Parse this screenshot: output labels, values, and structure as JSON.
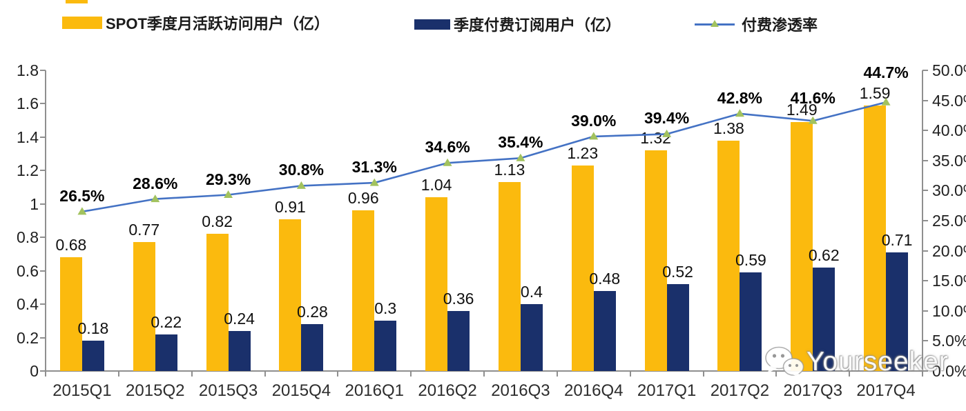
{
  "colors": {
    "mau_bar": "#FBBA0E",
    "sub_bar": "#1A306B",
    "penetration_line": "#4472C4",
    "penetration_marker": "#A2C25E",
    "axis": "#8f8f8f"
  },
  "legend": {
    "items": [
      {
        "label": "SPOT季度月活跃访问用户（亿）",
        "type": "bar",
        "color": "#FBBA0E"
      },
      {
        "label": "季度付费订阅用户（亿）",
        "type": "bar",
        "color": "#1A306B"
      },
      {
        "label": "付费渗透率",
        "type": "line",
        "color": "#4472C4",
        "marker_color": "#A2C25E"
      }
    ]
  },
  "chart_data": {
    "type": "bar",
    "subtype": "grouped-bars-with-line",
    "title": "",
    "grid": false,
    "legend_position": "top",
    "categories": [
      "2015Q1",
      "2015Q2",
      "2015Q3",
      "2015Q4",
      "2016Q1",
      "2016Q2",
      "2016Q3",
      "2016Q4",
      "2017Q1",
      "2017Q2",
      "2017Q3",
      "2017Q4"
    ],
    "series": [
      {
        "name": "SPOT季度月活跃访问用户（亿）",
        "type": "bar",
        "axis": "left",
        "color": "#FBBA0E",
        "values": [
          0.68,
          0.77,
          0.82,
          0.91,
          0.96,
          1.04,
          1.13,
          1.23,
          1.32,
          1.38,
          1.49,
          1.59
        ],
        "labels": [
          "0.68",
          "0.77",
          "0.82",
          "0.91",
          "0.96",
          "1.04",
          "1.13",
          "1.23",
          "1.32",
          "1.38",
          "1.49",
          "1.59"
        ]
      },
      {
        "name": "季度付费订阅用户（亿）",
        "type": "bar",
        "axis": "left",
        "color": "#1A306B",
        "values": [
          0.18,
          0.22,
          0.24,
          0.28,
          0.3,
          0.36,
          0.4,
          0.48,
          0.52,
          0.59,
          0.62,
          0.71
        ],
        "labels": [
          "0.18",
          "0.22",
          "0.24",
          "0.28",
          "0.3",
          "0.36",
          "0.4",
          "0.48",
          "0.52",
          "0.59",
          "0.62",
          "0.71"
        ]
      },
      {
        "name": "付费渗透率",
        "type": "line",
        "axis": "right",
        "color": "#4472C4",
        "marker": "triangle",
        "marker_color": "#A2C25E",
        "values": [
          26.5,
          28.6,
          29.3,
          30.8,
          31.3,
          34.6,
          35.4,
          39.0,
          39.4,
          42.8,
          41.6,
          44.7
        ],
        "labels": [
          "26.5%",
          "28.6%",
          "29.3%",
          "30.8%",
          "31.3%",
          "34.6%",
          "35.4%",
          "39.0%",
          "39.4%",
          "42.8%",
          "41.6%",
          "44.7%"
        ]
      }
    ],
    "left_axis": {
      "min": 0,
      "max": 1.8,
      "step": 0.2,
      "ticks": [
        "1.8",
        "1.6",
        "1.4",
        "1.2",
        "1",
        "0.8",
        "0.6",
        "0.4",
        "0.2",
        "0"
      ]
    },
    "right_axis": {
      "min": 0,
      "max": 50,
      "step": 5,
      "ticks": [
        "50.0%",
        "45.0%",
        "40.0%",
        "35.0%",
        "30.0%",
        "25.0%",
        "20.0%",
        "15.0%",
        "10.0%",
        "5.0%",
        "0.0%"
      ]
    }
  },
  "watermark": {
    "text": "Yourseeker",
    "icon": "wechat-icon"
  }
}
